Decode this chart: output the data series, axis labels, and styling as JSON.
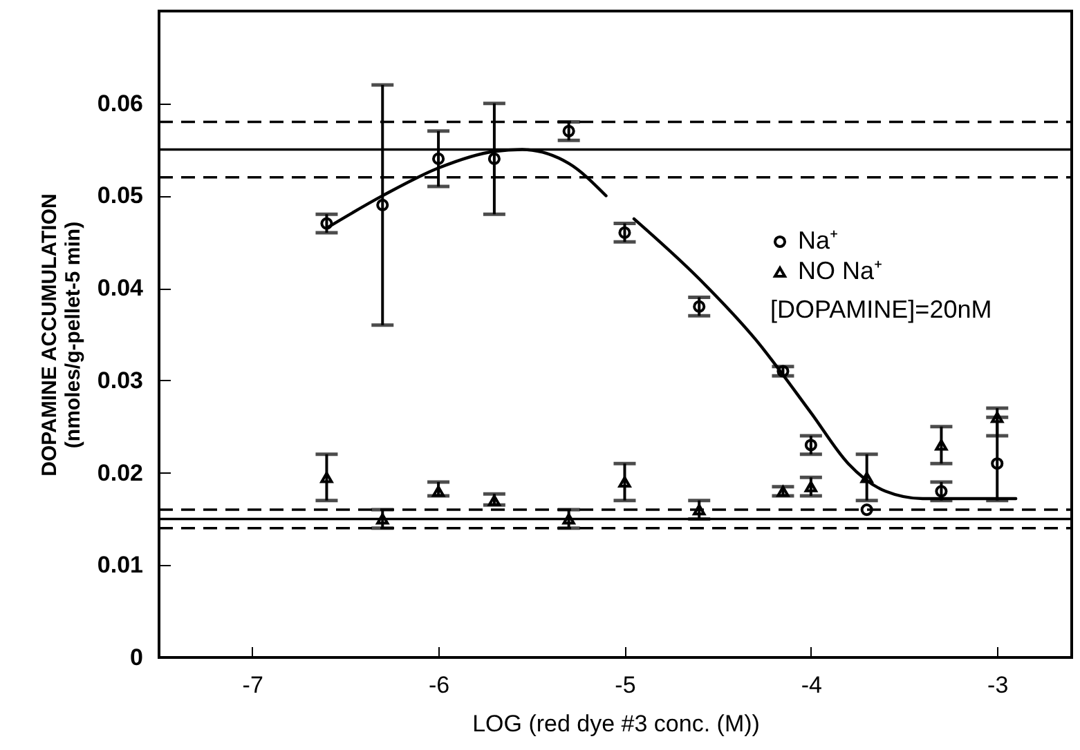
{
  "chart_data": {
    "type": "scatter",
    "xlabel": "LOG (red dye #3 conc. (M))",
    "ylabel": "DOPAMINE ACCUMULATION\n(nmoles/g-pellet-5 min)",
    "xlim": [
      -7.5,
      -2.6
    ],
    "xticks": [
      -7,
      -6,
      -5,
      -4,
      -3
    ],
    "ylim": [
      0,
      0.07
    ],
    "yticks": [
      0,
      0.01,
      0.02,
      0.03,
      0.04,
      0.05,
      0.06
    ],
    "grid": false,
    "legend": "right",
    "annotations": [
      "[DOPAMINE]=20nM"
    ],
    "series": [
      {
        "name": "Na⁺",
        "marker": "circle",
        "color": "#000000",
        "x": [
          -6.6,
          -6.3,
          -6.0,
          -5.7,
          -5.3,
          -5.0,
          -4.6,
          -4.15,
          -4.0,
          -3.7,
          -3.3,
          -3.0
        ],
        "values": [
          0.047,
          0.049,
          0.054,
          0.054,
          0.057,
          0.046,
          0.038,
          0.031,
          0.023,
          0.016,
          0.018,
          0.021
        ],
        "errors": [
          [
            0.046,
            0.048
          ],
          [
            0.036,
            0.062
          ],
          [
            0.051,
            0.057
          ],
          [
            0.048,
            0.06
          ],
          [
            0.056,
            0.058
          ],
          [
            0.045,
            0.047
          ],
          [
            0.037,
            0.039
          ],
          [
            0.0305,
            0.0315
          ],
          [
            0.022,
            0.024
          ],
          null,
          [
            0.017,
            0.019
          ],
          [
            0.017,
            0.026
          ]
        ]
      },
      {
        "name": "NO Na⁺",
        "marker": "triangle",
        "color": "#000000",
        "x": [
          -6.6,
          -6.3,
          -6.0,
          -5.7,
          -5.3,
          -5.0,
          -4.6,
          -4.15,
          -4.0,
          -3.7,
          -3.3,
          -3.0
        ],
        "values": [
          0.0195,
          0.015,
          0.018,
          0.017,
          0.015,
          0.019,
          0.016,
          0.018,
          0.0185,
          0.0195,
          0.023,
          0.026
        ],
        "errors": [
          [
            0.017,
            0.022
          ],
          [
            0.014,
            0.016
          ],
          [
            0.0175,
            0.019
          ],
          [
            0.0165,
            0.0177
          ],
          [
            0.014,
            0.016
          ],
          [
            0.017,
            0.021
          ],
          [
            0.015,
            0.017
          ],
          [
            0.0175,
            0.0185
          ],
          [
            0.0175,
            0.0195
          ],
          [
            0.017,
            0.022
          ],
          [
            0.021,
            0.025
          ],
          [
            0.024,
            0.027
          ]
        ]
      },
      {
        "type": "line",
        "color": "#000000",
        "line_style": "solid",
        "x": [
          -6.6,
          -6.3,
          -6.0,
          -5.7,
          -5.55,
          -5.3,
          -5.1,
          -5.02,
          -4.95,
          -4.6,
          -4.3,
          -4.0,
          -3.8,
          -3.6,
          -3.4,
          -2.9
        ],
        "values": [
          0.0465,
          0.05,
          0.053,
          0.0548,
          0.055,
          0.0535,
          0.05,
          null,
          0.0475,
          0.041,
          0.0345,
          0.0265,
          0.021,
          0.018,
          0.0172,
          0.0172
        ]
      }
    ],
    "ref_lines": [
      {
        "axis": "y",
        "value": 0.055,
        "line_style": "solid",
        "color": "#000000"
      },
      {
        "axis": "y",
        "value": 0.058,
        "line_style": "dashed",
        "color": "#000000"
      },
      {
        "axis": "y",
        "value": 0.052,
        "line_style": "dashed",
        "color": "#000000"
      },
      {
        "axis": "y",
        "value": 0.015,
        "line_style": "solid",
        "color": "#000000"
      },
      {
        "axis": "y",
        "value": 0.016,
        "line_style": "dashed",
        "color": "#000000"
      },
      {
        "axis": "y",
        "value": 0.014,
        "line_style": "dashed",
        "color": "#000000"
      }
    ]
  }
}
